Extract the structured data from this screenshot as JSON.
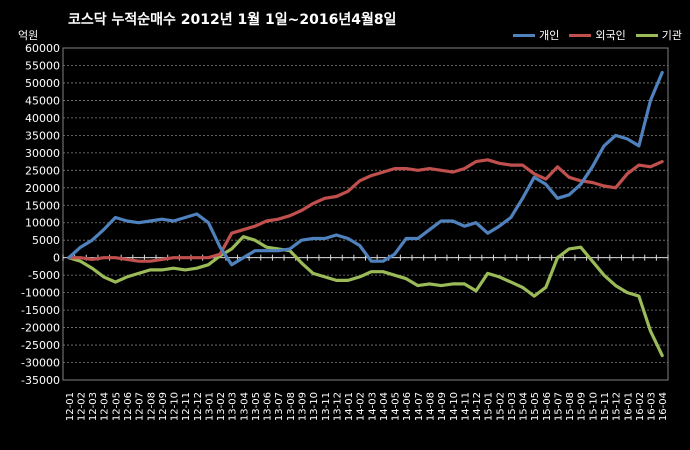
{
  "chart_data": {
    "type": "line",
    "title": "코스닥  누적순매수 2012년 1월 1일~2016년4월8일",
    "ylabel": "억원",
    "xlabel": "",
    "ylim": [
      -35000,
      60000
    ],
    "y_ticks": [
      60000,
      55000,
      50000,
      45000,
      40000,
      35000,
      30000,
      25000,
      20000,
      15000,
      10000,
      5000,
      0,
      -5000,
      -10000,
      -15000,
      -20000,
      -25000,
      -30000,
      -35000
    ],
    "y_tick_labels": [
      "60000",
      "55000",
      "50000",
      "45000",
      "40000",
      "35000",
      "30000",
      "25000",
      "20000",
      "15000",
      "10000",
      "5000",
      "0",
      "-5000",
      "-10000",
      "-15000",
      "-20000",
      "-25000",
      "-30000",
      "-35000"
    ],
    "categories": [
      "12-01",
      "12-02",
      "12-03",
      "12-04",
      "12-05",
      "12-06",
      "12-07",
      "12-08",
      "12-09",
      "12-10",
      "12-11",
      "12-12",
      "13-01",
      "13-02",
      "13-03",
      "13-04",
      "13-05",
      "13-06",
      "13-07",
      "13-08",
      "13-09",
      "13-10",
      "13-11",
      "13-12",
      "14-01",
      "14-02",
      "14-03",
      "14-04",
      "14-05",
      "14-06",
      "14-07",
      "14-08",
      "14-09",
      "14-10",
      "14-11",
      "14-12",
      "15-01",
      "15-02",
      "15-03",
      "15-04",
      "15-05",
      "15-06",
      "15-07",
      "15-08",
      "15-09",
      "15-10",
      "15-11",
      "15-12",
      "16-01",
      "16-02",
      "16-03",
      "16-04"
    ],
    "grid": true,
    "legend_position": "top-right",
    "series": [
      {
        "name": "개인",
        "color": "#4f81bd",
        "values": [
          0,
          3000,
          5000,
          8000,
          11500,
          10500,
          10000,
          10500,
          11000,
          10500,
          11500,
          12500,
          10000,
          3000,
          -2000,
          0,
          2000,
          2000,
          2000,
          2500,
          5000,
          5500,
          5500,
          6500,
          5500,
          3500,
          -1000,
          -1000,
          1000,
          5500,
          5500,
          8000,
          10500,
          10500,
          9000,
          10000,
          7000,
          9000,
          11500,
          17000,
          23000,
          21000,
          17000,
          18000,
          21000,
          26000,
          32000,
          35000,
          34000,
          32000,
          45000,
          53000
        ]
      },
      {
        "name": "외국인",
        "color": "#c0504d",
        "values": [
          0,
          0,
          -500,
          0,
          0,
          -500,
          -1000,
          -1000,
          -500,
          0,
          0,
          0,
          0,
          1000,
          7000,
          8000,
          9000,
          10500,
          11000,
          12000,
          13500,
          15500,
          17000,
          17500,
          19000,
          22000,
          23500,
          24500,
          25500,
          25500,
          25000,
          25500,
          25000,
          24500,
          25500,
          27500,
          28000,
          27000,
          26500,
          26500,
          24000,
          22500,
          26000,
          23000,
          22000,
          21500,
          20500,
          20000,
          24000,
          26500,
          26000,
          27500
        ]
      },
      {
        "name": "기관",
        "color": "#9bbb59",
        "values": [
          0,
          -1000,
          -3000,
          -5500,
          -7000,
          -5500,
          -4500,
          -3500,
          -3500,
          -3000,
          -3500,
          -3000,
          -2000,
          500,
          2500,
          6000,
          5000,
          3000,
          2500,
          2000,
          -1500,
          -4500,
          -5500,
          -6500,
          -6500,
          -5500,
          -4000,
          -4000,
          -5000,
          -6000,
          -8000,
          -7500,
          -8000,
          -7500,
          -7500,
          -9500,
          -4500,
          -5500,
          -7000,
          -8500,
          -11000,
          -8500,
          0,
          2500,
          3000,
          -1000,
          -5000,
          -8000,
          -10000,
          -11000,
          -21000,
          -28000
        ]
      }
    ]
  }
}
